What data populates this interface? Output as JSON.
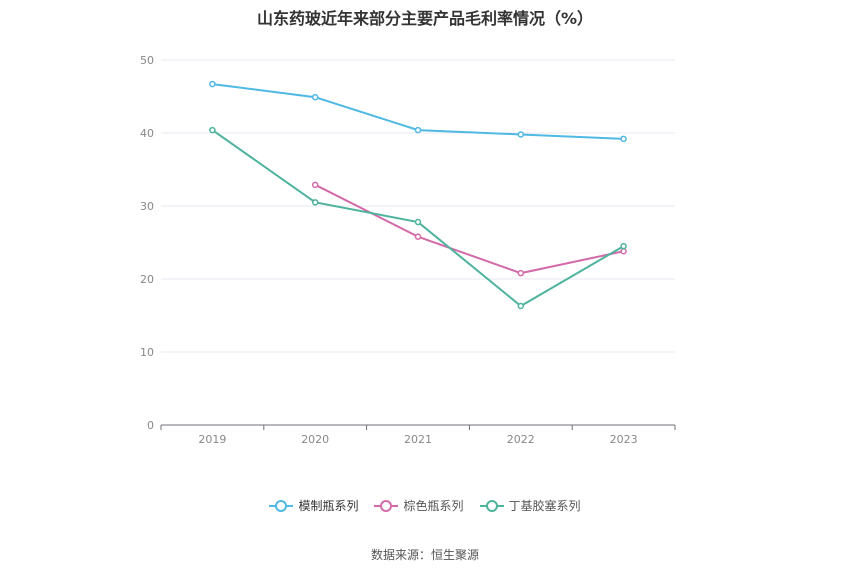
{
  "title": "山东药玻近年来部分主要产品毛利率情况（%）",
  "source": "数据来源：恒生聚源",
  "chart_data": {
    "type": "line",
    "title": "山东药玻近年来部分主要产品毛利率情况（%）",
    "categories": [
      "2019",
      "2020",
      "2021",
      "2022",
      "2023"
    ],
    "ylim": [
      0,
      50
    ],
    "yticks": [
      0,
      10,
      20,
      30,
      40,
      50
    ],
    "grid": true,
    "legend_position": "bottom",
    "series": [
      {
        "name": "模制瓶系列",
        "color": "#4fb8e3",
        "values": [
          46.7,
          44.9,
          40.4,
          39.8,
          39.2
        ]
      },
      {
        "name": "棕色瓶系列",
        "color": "#d36aa9",
        "values": [
          null,
          32.9,
          25.8,
          20.8,
          23.8
        ]
      },
      {
        "name": "丁基胶塞系列",
        "color": "#4db39c",
        "values": [
          40.4,
          30.5,
          27.8,
          16.3,
          24.5
        ]
      }
    ]
  }
}
